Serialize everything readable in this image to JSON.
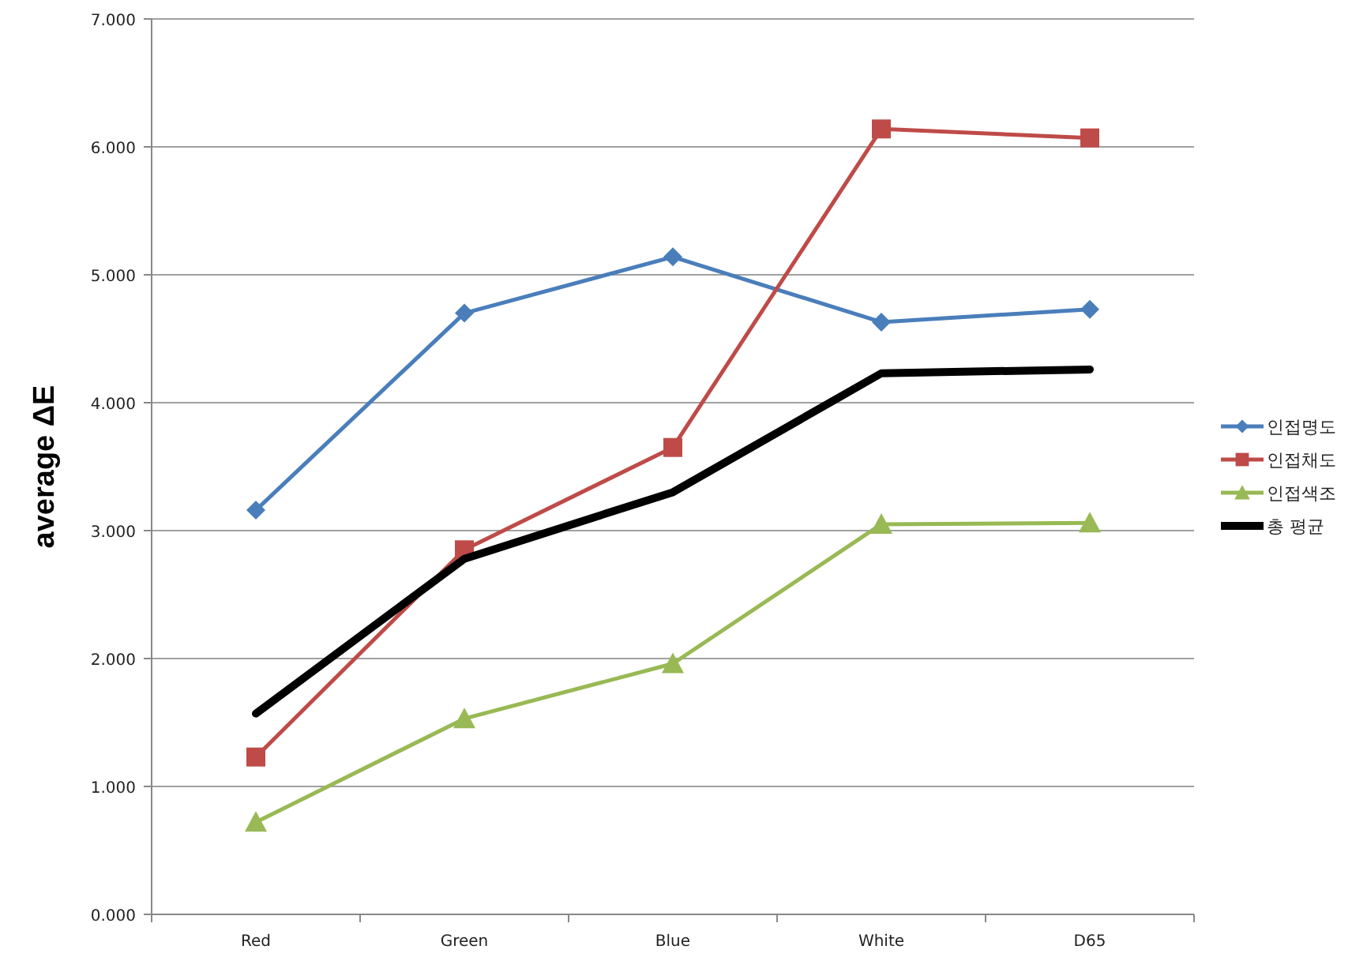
{
  "chart_data": {
    "type": "line",
    "ylabel": "average ΔE",
    "categories": [
      "Red",
      "Green",
      "Blue",
      "White",
      "D65"
    ],
    "ylim": [
      0,
      7
    ],
    "yticks": [
      {
        "value": 0,
        "label": "0.000"
      },
      {
        "value": 1,
        "label": "1.000"
      },
      {
        "value": 2,
        "label": "2.000"
      },
      {
        "value": 3,
        "label": "3.000"
      },
      {
        "value": 4,
        "label": "4.000"
      },
      {
        "value": 5,
        "label": "5.000"
      },
      {
        "value": 6,
        "label": "6.000"
      },
      {
        "value": 7,
        "label": "7.000"
      }
    ],
    "grid": "y",
    "legend": "right",
    "series": [
      {
        "name": "인접명도",
        "color": "#4a7ebb",
        "marker": "diamond",
        "values": [
          3.16,
          4.7,
          5.14,
          4.63,
          4.73
        ]
      },
      {
        "name": "인접채도",
        "color": "#be4b48",
        "marker": "square",
        "values": [
          1.23,
          2.85,
          3.65,
          6.14,
          6.07
        ]
      },
      {
        "name": "인접색조",
        "color": "#98b954",
        "marker": "triangle",
        "values": [
          0.72,
          1.53,
          1.96,
          3.05,
          3.06
        ]
      },
      {
        "name": "총 평균",
        "color": "#000000",
        "marker": "none",
        "values": [
          1.57,
          2.78,
          3.3,
          4.23,
          4.26
        ]
      }
    ]
  }
}
